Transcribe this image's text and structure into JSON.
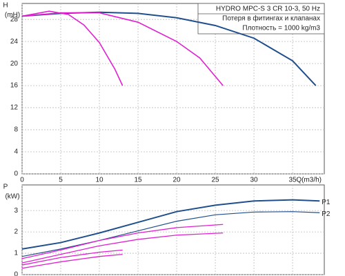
{
  "chart_data": [
    {
      "type": "line",
      "ylabel": [
        "H",
        "(mH)"
      ],
      "xlabel": "Q(m3/h)",
      "notes": [
        "HYDRO MPC-S 3 CR 10-3, 50 Hz",
        "Потеря в фитингах и клапанах",
        "Плотность = 1000 kg/m3"
      ],
      "xlim": [
        0,
        39.1
      ],
      "ylim": [
        0,
        30.9
      ],
      "xticks": [
        0,
        5,
        10,
        15,
        20,
        25,
        30,
        35
      ],
      "yticks": [
        0,
        4,
        8,
        12,
        16,
        20,
        24,
        28
      ],
      "show_xtick_labels": true,
      "grid": true,
      "series": [
        {
          "color": "#1f4e8c",
          "width": 2,
          "x": [
            0,
            5,
            10,
            15,
            20,
            25,
            30,
            35,
            38
          ],
          "values": [
            28.6,
            29.1,
            29.3,
            29.1,
            28.3,
            26.9,
            24.6,
            20.5,
            16
          ]
        },
        {
          "color": "#e020d0",
          "width": 1.6,
          "x": [
            0,
            5,
            10,
            15,
            20,
            23,
            26
          ],
          "values": [
            28.6,
            29.2,
            29.2,
            27.5,
            24,
            21,
            16
          ]
        },
        {
          "color": "#e020d0",
          "width": 1.6,
          "x": [
            0,
            3.5,
            6,
            8,
            10,
            12,
            13
          ],
          "values": [
            28.6,
            29.5,
            28.9,
            27,
            23.8,
            19,
            16
          ]
        }
      ]
    },
    {
      "type": "line",
      "ylabel": [
        "P",
        "(kW)"
      ],
      "xlim": [
        0,
        39.1
      ],
      "ylim": [
        0,
        4.2
      ],
      "xticks": [
        0,
        5,
        10,
        15,
        20,
        25,
        30,
        35
      ],
      "yticks": [
        0,
        1,
        2,
        3
      ],
      "show_xtick_labels": false,
      "grid": true,
      "series": [
        {
          "name": "P1",
          "color": "#1f4e8c",
          "width": 2,
          "x": [
            0,
            5,
            10,
            15,
            20,
            25,
            30,
            35,
            38.5
          ],
          "values": [
            1.2,
            1.5,
            1.95,
            2.45,
            2.95,
            3.25,
            3.45,
            3.5,
            3.45
          ]
        },
        {
          "name": "P2",
          "color": "#1f4e8c",
          "width": 1.2,
          "x": [
            0,
            5,
            10,
            15,
            20,
            25,
            30,
            35,
            38.5
          ],
          "values": [
            0.85,
            1.2,
            1.6,
            2.05,
            2.5,
            2.8,
            2.93,
            2.95,
            2.9
          ]
        },
        {
          "color": "#e020d0",
          "width": 1.3,
          "x": [
            0,
            5,
            10,
            15,
            20,
            26
          ],
          "values": [
            0.75,
            1.15,
            1.6,
            1.95,
            2.2,
            2.35
          ]
        },
        {
          "color": "#e020d0",
          "width": 1.3,
          "x": [
            0,
            5,
            10,
            15,
            20,
            26
          ],
          "values": [
            0.55,
            0.95,
            1.35,
            1.65,
            1.85,
            1.95
          ]
        },
        {
          "color": "#e020d0",
          "width": 1.3,
          "x": [
            0,
            5,
            10,
            13
          ],
          "values": [
            0.45,
            0.8,
            1.05,
            1.15
          ]
        },
        {
          "color": "#e020d0",
          "width": 1.3,
          "x": [
            0,
            5,
            10,
            13
          ],
          "values": [
            0.3,
            0.6,
            0.85,
            0.95
          ]
        }
      ]
    }
  ]
}
